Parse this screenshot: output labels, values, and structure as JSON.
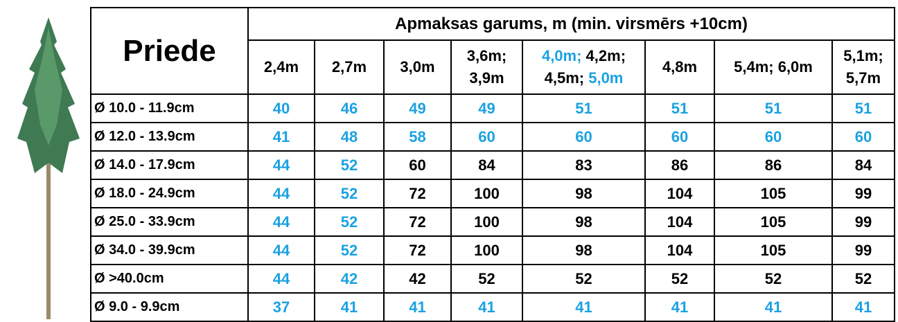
{
  "table": {
    "corner": "Priede",
    "title": "Apmaksas garums, m  (min. virsmērs +10cm)",
    "columns": [
      [
        [
          {
            "text": "2,4m",
            "color": "#000000"
          }
        ]
      ],
      [
        [
          {
            "text": "2,7m",
            "color": "#000000"
          }
        ]
      ],
      [
        [
          {
            "text": "3,0m",
            "color": "#000000"
          }
        ]
      ],
      [
        [
          {
            "text": "3,6m;",
            "color": "#000000"
          }
        ],
        [
          {
            "text": "3,9m",
            "color": "#000000"
          }
        ]
      ],
      [
        [
          {
            "text": "4,0m;",
            "color": "#1ba1e2"
          },
          {
            "text": " 4,2m;",
            "color": "#000000"
          }
        ],
        [
          {
            "text": "4,5m;",
            "color": "#000000"
          },
          {
            "text": " 5,0m",
            "color": "#1ba1e2"
          }
        ]
      ],
      [
        [
          {
            "text": "4,8m",
            "color": "#000000"
          }
        ]
      ],
      [
        [
          {
            "text": "5,4m; 6,0m",
            "color": "#000000"
          }
        ]
      ],
      [
        [
          {
            "text": "5,1m;",
            "color": "#000000"
          }
        ],
        [
          {
            "text": "5,7m",
            "color": "#000000"
          }
        ]
      ]
    ],
    "rows": [
      {
        "label": "Ø 10.0 - 11.9cm",
        "values": [
          "40",
          "46",
          "49",
          "49",
          "51",
          "51",
          "51",
          "51"
        ],
        "colors": [
          "#1ba1e2",
          "#1ba1e2",
          "#1ba1e2",
          "#1ba1e2",
          "#1ba1e2",
          "#1ba1e2",
          "#1ba1e2",
          "#1ba1e2"
        ]
      },
      {
        "label": "Ø 12.0 - 13.9cm",
        "values": [
          "41",
          "48",
          "58",
          "60",
          "60",
          "60",
          "60",
          "60"
        ],
        "colors": [
          "#1ba1e2",
          "#1ba1e2",
          "#1ba1e2",
          "#1ba1e2",
          "#1ba1e2",
          "#1ba1e2",
          "#1ba1e2",
          "#1ba1e2"
        ]
      },
      {
        "label": "Ø 14.0 - 17.9cm",
        "values": [
          "44",
          "52",
          "60",
          "84",
          "83",
          "86",
          "86",
          "84"
        ],
        "colors": [
          "#1ba1e2",
          "#1ba1e2",
          "#000000",
          "#000000",
          "#000000",
          "#000000",
          "#000000",
          "#000000"
        ]
      },
      {
        "label": "Ø 18.0 - 24.9cm",
        "values": [
          "44",
          "52",
          "72",
          "100",
          "98",
          "104",
          "105",
          "99"
        ],
        "colors": [
          "#1ba1e2",
          "#1ba1e2",
          "#000000",
          "#000000",
          "#000000",
          "#000000",
          "#000000",
          "#000000"
        ]
      },
      {
        "label": "Ø 25.0 - 33.9cm",
        "values": [
          "44",
          "52",
          "72",
          "100",
          "98",
          "104",
          "105",
          "99"
        ],
        "colors": [
          "#1ba1e2",
          "#1ba1e2",
          "#000000",
          "#000000",
          "#000000",
          "#000000",
          "#000000",
          "#000000"
        ]
      },
      {
        "label": "Ø 34.0 - 39.9cm",
        "values": [
          "44",
          "52",
          "72",
          "100",
          "98",
          "104",
          "105",
          "99"
        ],
        "colors": [
          "#1ba1e2",
          "#1ba1e2",
          "#000000",
          "#000000",
          "#000000",
          "#000000",
          "#000000",
          "#000000"
        ]
      },
      {
        "label": "Ø >40.0cm",
        "values": [
          "44",
          "42",
          "42",
          "52",
          "52",
          "52",
          "52",
          "52"
        ],
        "colors": [
          "#1ba1e2",
          "#1ba1e2",
          "#000000",
          "#000000",
          "#000000",
          "#000000",
          "#000000",
          "#000000"
        ]
      },
      {
        "label": "Ø 9.0 - 9.9cm",
        "values": [
          "37",
          "41",
          "41",
          "41",
          "41",
          "41",
          "41",
          "41"
        ],
        "colors": [
          "#1ba1e2",
          "#1ba1e2",
          "#1ba1e2",
          "#1ba1e2",
          "#1ba1e2",
          "#1ba1e2",
          "#1ba1e2",
          "#1ba1e2"
        ]
      }
    ]
  }
}
